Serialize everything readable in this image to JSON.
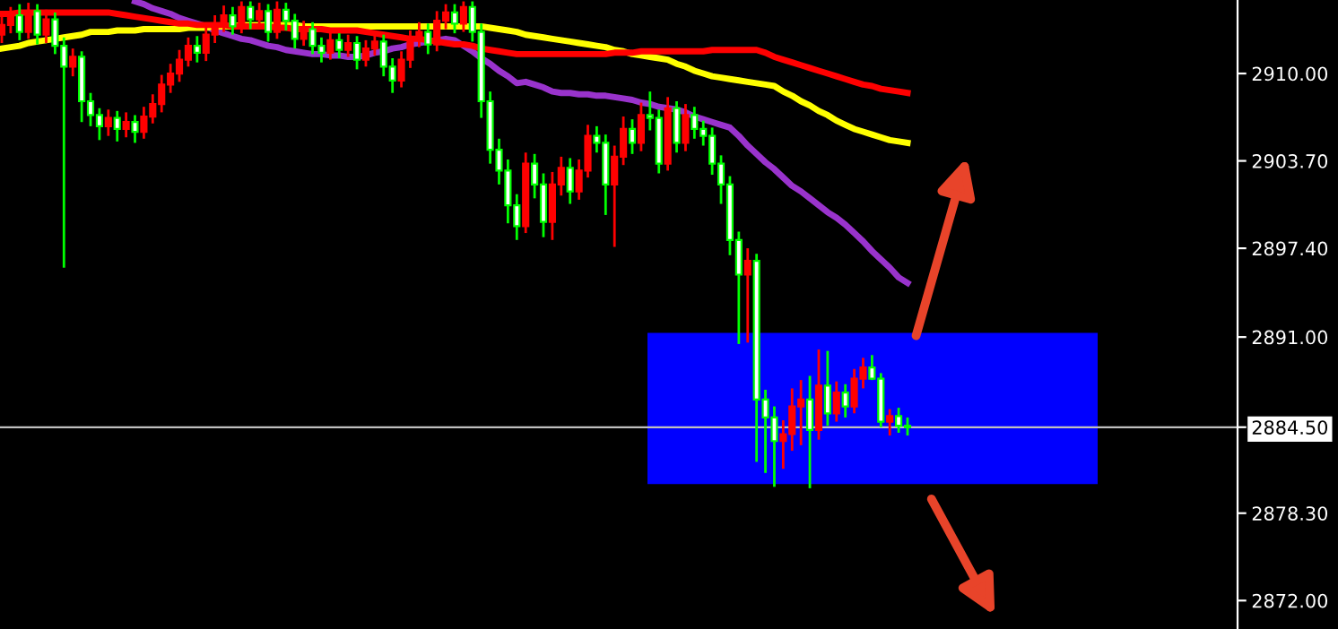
{
  "chart_data": {
    "type": "candlestick",
    "categories": [
      null,
      null,
      null,
      null,
      null,
      null,
      null,
      null,
      null,
      null,
      null,
      null,
      null,
      null,
      null,
      null,
      null,
      null,
      null,
      null,
      null,
      null,
      null,
      null,
      null,
      null,
      null,
      null,
      null,
      null,
      null,
      null,
      null,
      null,
      null,
      null,
      null,
      null,
      null,
      null,
      null,
      null,
      null,
      null,
      null,
      null,
      null,
      null,
      null,
      null,
      null,
      null,
      null,
      null,
      null,
      null,
      null,
      null,
      null,
      null,
      null,
      null,
      null,
      null,
      null,
      null,
      null,
      null,
      null,
      null,
      null,
      null,
      null,
      null,
      null,
      null,
      null,
      null,
      null,
      null,
      null,
      null,
      null,
      null,
      null,
      null,
      null,
      null,
      null,
      null,
      null,
      null,
      null,
      null,
      null,
      null,
      null,
      null,
      null,
      null,
      null,
      null,
      null
    ],
    "ohlc": [
      [
        2912.8,
        2914.1,
        2912.2,
        2913.5
      ],
      [
        2913.5,
        2914.8,
        2912.9,
        2914.2
      ],
      [
        2914.2,
        2915.0,
        2912.4,
        2913.0
      ],
      [
        2913.0,
        2915.1,
        2912.5,
        2914.5
      ],
      [
        2914.5,
        2915.0,
        2912.1,
        2912.8
      ],
      [
        2912.8,
        2914.6,
        2912.2,
        2913.9
      ],
      [
        2913.9,
        2914.4,
        2911.4,
        2912.0
      ],
      [
        2912.0,
        2912.6,
        2896.0,
        2910.5
      ],
      [
        2910.5,
        2911.8,
        2909.8,
        2911.2
      ],
      [
        2911.2,
        2911.6,
        2906.5,
        2908.0
      ],
      [
        2908.0,
        2908.6,
        2906.2,
        2907.0
      ],
      [
        2907.0,
        2907.5,
        2905.2,
        2906.2
      ],
      [
        2906.2,
        2907.4,
        2905.5,
        2906.8
      ],
      [
        2906.8,
        2907.3,
        2905.1,
        2906.0
      ],
      [
        2906.0,
        2907.2,
        2905.4,
        2906.5
      ],
      [
        2906.5,
        2907.0,
        2905.0,
        2905.8
      ],
      [
        2905.8,
        2907.6,
        2905.3,
        2906.9
      ],
      [
        2906.9,
        2908.5,
        2906.4,
        2907.8
      ],
      [
        2907.8,
        2909.9,
        2907.2,
        2909.2
      ],
      [
        2909.2,
        2910.7,
        2908.6,
        2910.0
      ],
      [
        2910.0,
        2911.7,
        2909.4,
        2911.0
      ],
      [
        2911.0,
        2912.6,
        2910.5,
        2912.0
      ],
      [
        2912.0,
        2912.7,
        2910.8,
        2911.5
      ],
      [
        2911.5,
        2913.5,
        2910.9,
        2912.8
      ],
      [
        2912.8,
        2914.2,
        2912.2,
        2913.5
      ],
      [
        2913.5,
        2914.9,
        2913.0,
        2914.2
      ],
      [
        2914.2,
        2914.8,
        2912.8,
        2913.4
      ],
      [
        2913.4,
        2915.2,
        2912.9,
        2914.8
      ],
      [
        2914.8,
        2915.2,
        2913.2,
        2913.9
      ],
      [
        2913.9,
        2915.1,
        2913.3,
        2914.5
      ],
      [
        2914.5,
        2915.0,
        2912.3,
        2913.0
      ],
      [
        2913.0,
        2915.2,
        2912.5,
        2914.6
      ],
      [
        2914.6,
        2915.1,
        2913.1,
        2913.8
      ],
      [
        2913.8,
        2914.3,
        2911.8,
        2912.5
      ],
      [
        2912.5,
        2913.8,
        2912.0,
        2913.2
      ],
      [
        2913.2,
        2913.7,
        2911.4,
        2912.0
      ],
      [
        2912.0,
        2912.6,
        2910.8,
        2911.5
      ],
      [
        2911.5,
        2913.0,
        2911.0,
        2912.4
      ],
      [
        2912.4,
        2912.9,
        2911.1,
        2911.7
      ],
      [
        2911.7,
        2912.8,
        2911.2,
        2912.2
      ],
      [
        2912.2,
        2912.7,
        2910.3,
        2911.0
      ],
      [
        2911.0,
        2912.4,
        2910.5,
        2911.8
      ],
      [
        2911.8,
        2913.0,
        2911.3,
        2912.3
      ],
      [
        2912.3,
        2912.8,
        2909.8,
        2910.5
      ],
      [
        2910.5,
        2911.1,
        2908.6,
        2909.5
      ],
      [
        2909.5,
        2911.6,
        2909.0,
        2911.0
      ],
      [
        2911.0,
        2913.1,
        2910.4,
        2912.5
      ],
      [
        2912.5,
        2913.7,
        2911.9,
        2913.0
      ],
      [
        2913.0,
        2913.6,
        2911.4,
        2912.1
      ],
      [
        2912.1,
        2914.5,
        2911.6,
        2913.8
      ],
      [
        2913.8,
        2915.0,
        2913.2,
        2914.4
      ],
      [
        2914.4,
        2915.0,
        2912.9,
        2913.6
      ],
      [
        2913.6,
        2915.2,
        2913.0,
        2914.8
      ],
      [
        2914.8,
        2915.2,
        2912.3,
        2913.0
      ],
      [
        2913.0,
        2913.6,
        2906.8,
        2908.0
      ],
      [
        2908.0,
        2908.7,
        2903.5,
        2904.5
      ],
      [
        2904.5,
        2905.3,
        2902.0,
        2903.0
      ],
      [
        2903.0,
        2903.8,
        2899.2,
        2900.5
      ],
      [
        2900.5,
        2901.3,
        2898.0,
        2899.0
      ],
      [
        2899.0,
        2904.3,
        2898.5,
        2903.5
      ],
      [
        2903.5,
        2904.2,
        2901.0,
        2902.0
      ],
      [
        2902.0,
        2902.8,
        2898.2,
        2899.3
      ],
      [
        2899.3,
        2902.9,
        2898.0,
        2902.0
      ],
      [
        2902.0,
        2904.0,
        2901.2,
        2903.2
      ],
      [
        2903.2,
        2903.9,
        2900.6,
        2901.5
      ],
      [
        2901.5,
        2903.8,
        2900.9,
        2903.0
      ],
      [
        2903.0,
        2906.3,
        2902.5,
        2905.5
      ],
      [
        2905.5,
        2906.2,
        2904.3,
        2905.0
      ],
      [
        2905.0,
        2905.6,
        2899.8,
        2902.0
      ],
      [
        2902.0,
        2904.8,
        2897.5,
        2904.0
      ],
      [
        2904.0,
        2906.9,
        2903.4,
        2906.0
      ],
      [
        2906.0,
        2906.7,
        2904.2,
        2905.0
      ],
      [
        2905.0,
        2907.9,
        2904.4,
        2907.0
      ],
      [
        2907.0,
        2908.7,
        2905.9,
        2906.8
      ],
      [
        2906.8,
        2907.4,
        2902.8,
        2903.5
      ],
      [
        2903.5,
        2908.3,
        2903.0,
        2907.5
      ],
      [
        2907.5,
        2908.0,
        2904.3,
        2905.0
      ],
      [
        2905.0,
        2907.8,
        2904.4,
        2907.0
      ],
      [
        2907.0,
        2907.6,
        2905.3,
        2906.0
      ],
      [
        2906.0,
        2906.6,
        2904.8,
        2905.5
      ],
      [
        2905.5,
        2906.1,
        2902.7,
        2903.5
      ],
      [
        2903.5,
        2904.1,
        2900.6,
        2902.0
      ],
      [
        2902.0,
        2902.6,
        2896.9,
        2898.0
      ],
      [
        2898.0,
        2898.6,
        2890.5,
        2895.5
      ],
      [
        2895.5,
        2897.4,
        2890.6,
        2896.5
      ],
      [
        2896.5,
        2897.0,
        2882.0,
        2886.5
      ],
      [
        2886.5,
        2887.2,
        2881.2,
        2885.2
      ],
      [
        2885.2,
        2886.0,
        2880.2,
        2883.5
      ],
      [
        2883.5,
        2885.0,
        2881.5,
        2884.0
      ],
      [
        2884.0,
        2887.3,
        2882.8,
        2886.0
      ],
      [
        2886.0,
        2887.9,
        2883.2,
        2886.5
      ],
      [
        2886.5,
        2888.2,
        2880.1,
        2884.3
      ],
      [
        2884.3,
        2890.1,
        2883.6,
        2887.5
      ],
      [
        2887.5,
        2890.0,
        2884.6,
        2885.5
      ],
      [
        2885.5,
        2887.8,
        2884.9,
        2887.0
      ],
      [
        2887.0,
        2887.6,
        2885.2,
        2886.0
      ],
      [
        2886.0,
        2888.7,
        2885.5,
        2888.0
      ],
      [
        2888.0,
        2889.5,
        2887.3,
        2888.8
      ],
      [
        2888.8,
        2889.7,
        2887.9,
        2888.0
      ],
      [
        2888.0,
        2888.4,
        2884.5,
        2884.9
      ],
      [
        2884.9,
        2885.8,
        2883.9,
        2885.3
      ],
      [
        2885.3,
        2885.9,
        2884.1,
        2884.6
      ],
      [
        2884.6,
        2885.2,
        2883.9,
        2884.5
      ]
    ],
    "colors": [
      "#ff0000",
      "#ff0000",
      "#00ff00",
      "#ff0000",
      "#00ff00",
      "#ff0000",
      "#00ff00",
      "#00ff00",
      "#ff0000",
      "#00ff00",
      "#00ff00",
      "#00ff00",
      "#ff0000",
      "#00ff00",
      "#ff0000",
      "#00ff00",
      "#ff0000",
      "#ff0000",
      "#ff0000",
      "#ff0000",
      "#ff0000",
      "#ff0000",
      "#00ff00",
      "#ff0000",
      "#ff0000",
      "#ff0000",
      "#00ff00",
      "#ff0000",
      "#00ff00",
      "#ff0000",
      "#00ff00",
      "#ff0000",
      "#00ff00",
      "#00ff00",
      "#ff0000",
      "#00ff00",
      "#00ff00",
      "#ff0000",
      "#00ff00",
      "#ff0000",
      "#00ff00",
      "#ff0000",
      "#ff0000",
      "#00ff00",
      "#00ff00",
      "#ff0000",
      "#ff0000",
      "#ff0000",
      "#00ff00",
      "#ff0000",
      "#ff0000",
      "#00ff00",
      "#ff0000",
      "#00ff00",
      "#00ff00",
      "#00ff00",
      "#00ff00",
      "#00ff00",
      "#00ff00",
      "#ff0000",
      "#00ff00",
      "#00ff00",
      "#ff0000",
      "#ff0000",
      "#00ff00",
      "#ff0000",
      "#ff0000",
      "#00ff00",
      "#00ff00",
      "#ff0000",
      "#ff0000",
      "#00ff00",
      "#ff0000",
      "#00ff00",
      "#00ff00",
      "#ff0000",
      "#00ff00",
      "#ff0000",
      "#00ff00",
      "#00ff00",
      "#00ff00",
      "#00ff00",
      "#00ff00",
      "#00ff00",
      "#ff0000",
      "#00ff00",
      "#00ff00",
      "#00ff00",
      "#ff0000",
      "#ff0000",
      "#ff0000",
      "#00ff00",
      "#ff0000",
      "#00ff00",
      "#ff0000",
      "#00ff00",
      "#ff0000",
      "#ff0000",
      "#00ff00",
      "#00ff00",
      "#ff0000",
      "#00ff00",
      "#00ff00"
    ],
    "series": [
      {
        "type": "line",
        "color": "#9933cc",
        "values": [
          null,
          null,
          null,
          null,
          null,
          null,
          null,
          null,
          null,
          null,
          null,
          null,
          null,
          null,
          null,
          2915.2,
          2915.0,
          2914.7,
          2914.5,
          2914.3,
          2914.0,
          2913.8,
          2913.6,
          2913.4,
          2913.1,
          2912.9,
          2912.7,
          2912.5,
          2912.4,
          2912.2,
          2912.0,
          2911.9,
          2911.7,
          2911.6,
          2911.5,
          2911.4,
          2911.4,
          2911.3,
          2911.3,
          2911.2,
          2911.2,
          2911.3,
          2911.5,
          2911.6,
          2911.8,
          2911.9,
          2912.1,
          2912.2,
          2912.3,
          2912.4,
          2912.5,
          2912.4,
          2912.0,
          2911.6,
          2911.1,
          2910.7,
          2910.2,
          2909.8,
          2909.3,
          2909.4,
          2909.2,
          2909.0,
          2908.7,
          2908.6,
          2908.6,
          2908.5,
          2908.5,
          2908.4,
          2908.4,
          2908.3,
          2908.2,
          2908.1,
          2907.9,
          2907.8,
          2907.6,
          2907.5,
          2907.4,
          2907.2,
          2906.9,
          2906.7,
          2906.5,
          2906.3,
          2906.1,
          2905.5,
          2904.8,
          2904.2,
          2903.6,
          2903.1,
          2902.5,
          2901.9,
          2901.5,
          2901.0,
          2900.5,
          2900.0,
          2899.6,
          2899.1,
          2898.5,
          2897.9,
          2897.2,
          2896.6,
          2896.0,
          2895.3,
          2894.9
        ]
      },
      {
        "type": "line",
        "color": "#ffff00",
        "values": [
          2911.8,
          2911.9,
          2912.0,
          2912.2,
          2912.3,
          2912.4,
          2912.5,
          2912.6,
          2912.7,
          2912.8,
          2913.0,
          2913.0,
          2913.0,
          2913.1,
          2913.1,
          2913.1,
          2913.2,
          2913.2,
          2913.2,
          2913.2,
          2913.2,
          2913.3,
          2913.3,
          2913.3,
          2913.4,
          2913.4,
          2913.4,
          2913.5,
          2913.5,
          2913.5,
          2913.5,
          2913.5,
          2913.5,
          2913.5,
          2913.4,
          2913.4,
          2913.4,
          2913.4,
          2913.4,
          2913.4,
          2913.4,
          2913.4,
          2913.4,
          2913.4,
          2913.4,
          2913.4,
          2913.4,
          2913.4,
          2913.4,
          2913.4,
          2913.4,
          2913.4,
          2913.4,
          2913.4,
          2913.4,
          2913.3,
          2913.2,
          2913.1,
          2913.0,
          2912.8,
          2912.7,
          2912.6,
          2912.5,
          2912.4,
          2912.3,
          2912.2,
          2912.1,
          2912.0,
          2911.9,
          2911.7,
          2911.6,
          2911.4,
          2911.3,
          2911.2,
          2911.1,
          2911.0,
          2910.7,
          2910.5,
          2910.2,
          2910.0,
          2909.8,
          2909.7,
          2909.6,
          2909.5,
          2909.4,
          2909.3,
          2909.2,
          2909.1,
          2908.7,
          2908.4,
          2908.0,
          2907.7,
          2907.3,
          2907.0,
          2906.6,
          2906.3,
          2906.0,
          2905.8,
          2905.6,
          2905.4,
          2905.2,
          2905.1,
          2905.0
        ]
      },
      {
        "type": "line",
        "color": "#ff0000",
        "values": [
          2914.3,
          2914.3,
          2914.4,
          2914.4,
          2914.4,
          2914.4,
          2914.4,
          2914.4,
          2914.4,
          2914.4,
          2914.4,
          2914.4,
          2914.4,
          2914.3,
          2914.2,
          2914.1,
          2914.0,
          2913.9,
          2913.8,
          2913.7,
          2913.6,
          2913.6,
          2913.5,
          2913.5,
          2913.5,
          2913.5,
          2913.4,
          2913.4,
          2913.4,
          2913.4,
          2913.4,
          2913.3,
          2913.3,
          2913.2,
          2913.2,
          2913.2,
          2913.2,
          2913.1,
          2913.1,
          2913.1,
          2913.1,
          2913.0,
          2912.9,
          2912.8,
          2912.7,
          2912.6,
          2912.5,
          2912.5,
          2912.4,
          2912.3,
          2912.2,
          2912.1,
          2912.1,
          2912.0,
          2911.8,
          2911.7,
          2911.6,
          2911.5,
          2911.4,
          2911.4,
          2911.4,
          2911.4,
          2911.4,
          2911.4,
          2911.4,
          2911.4,
          2911.4,
          2911.4,
          2911.4,
          2911.5,
          2911.5,
          2911.5,
          2911.6,
          2911.6,
          2911.6,
          2911.6,
          2911.6,
          2911.6,
          2911.6,
          2911.6,
          2911.7,
          2911.7,
          2911.7,
          2911.7,
          2911.7,
          2911.7,
          2911.5,
          2911.2,
          2911.0,
          2910.8,
          2910.6,
          2910.4,
          2910.2,
          2910.0,
          2909.8,
          2909.6,
          2909.4,
          2909.2,
          2909.1,
          2908.9,
          2908.8,
          2908.7,
          2908.6
        ]
      }
    ],
    "ylim": [
      2869.95,
      2915.3
    ],
    "yticks": [
      {
        "value": 2910.0,
        "label": "2910.00"
      },
      {
        "value": 2903.7,
        "label": "2903.70"
      },
      {
        "value": 2897.4,
        "label": "2897.40"
      },
      {
        "value": 2891.0,
        "label": "2891.00"
      },
      {
        "value": 2884.5,
        "label": "2884.50"
      },
      {
        "value": 2878.3,
        "label": "2878.30"
      },
      {
        "value": 2872.0,
        "label": "2872.00"
      }
    ],
    "bands": [
      {
        "axis": "y",
        "from": 2880.4,
        "to": 2891.3,
        "color": "#0000ff"
      }
    ],
    "ref_lines": [
      {
        "axis": "y",
        "value": 2884.5,
        "color": "#c0c0c0"
      }
    ],
    "tick_labels": "y",
    "grid": false,
    "legend": false
  }
}
